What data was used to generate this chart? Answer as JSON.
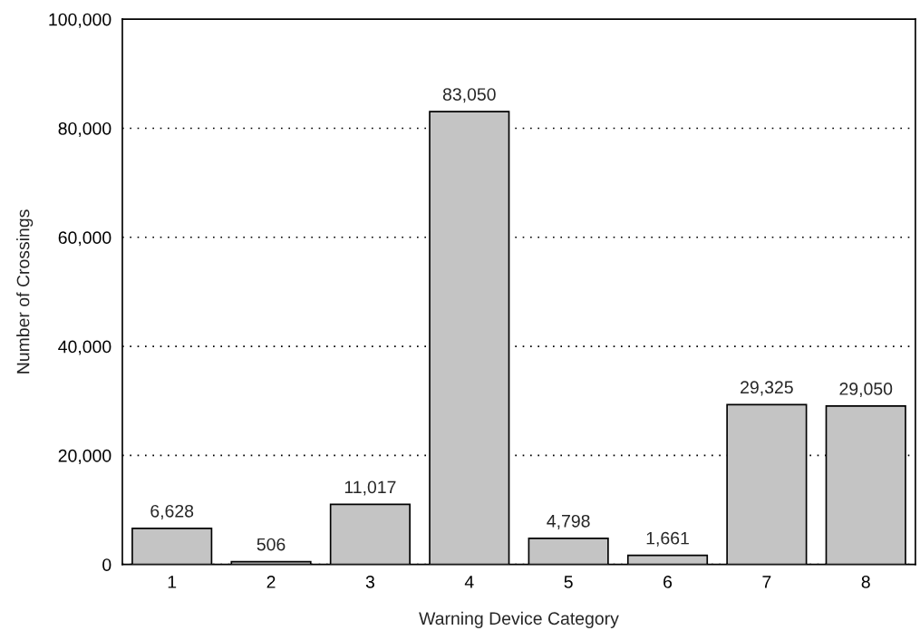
{
  "chart_data": {
    "type": "bar",
    "xlabel": "Warning Device Category",
    "ylabel": "Number of Crossings",
    "categories": [
      "1",
      "2",
      "3",
      "4",
      "5",
      "6",
      "7",
      "8"
    ],
    "values": [
      6628,
      506,
      11017,
      83050,
      4798,
      1661,
      29325,
      29050
    ],
    "color": "#c4c4c4",
    "ylim": [
      0,
      100000
    ],
    "yticks": [
      {
        "value": 0,
        "label": "0"
      },
      {
        "value": 20000,
        "label": "20,000"
      },
      {
        "value": 40000,
        "label": "40,000"
      },
      {
        "value": 60000,
        "label": "60,000"
      },
      {
        "value": 80000,
        "label": "80,000"
      },
      {
        "value": 100000,
        "label": "100,000"
      }
    ],
    "value_labels": [
      "6,628",
      "506",
      "11,017",
      "83,050",
      "4,798",
      "1,661",
      "29,325",
      "29,050"
    ],
    "grid": "y"
  }
}
